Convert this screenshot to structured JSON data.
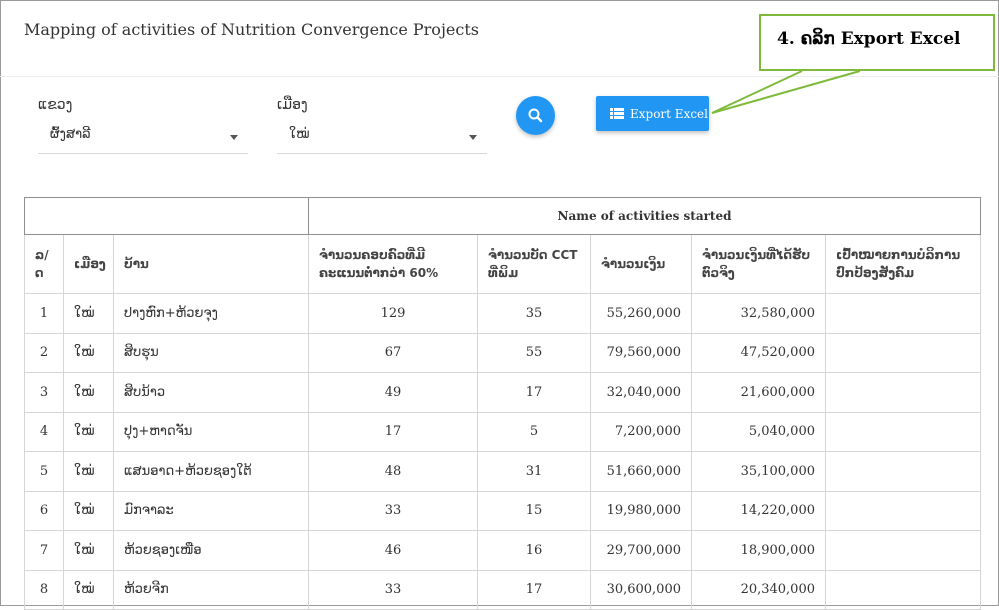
{
  "page": {
    "title": "Mapping of activities of Nutrition Convergence Projects"
  },
  "filters": {
    "province": {
      "label": "ແຂວງ",
      "value": "ຜົ້ງສາລີ"
    },
    "district": {
      "label": "ເມືອງ",
      "value": "ໃໝ່"
    }
  },
  "buttons": {
    "search_icon": "magnifier-icon",
    "export_label": "Export Excel",
    "export_icon": "table-list-icon"
  },
  "callout": {
    "text": "4. ຄລິກ Export Excel",
    "color": "#7fba3a"
  },
  "colors": {
    "accent": "#2196f3"
  },
  "table": {
    "group_header": "Name of activities started",
    "columns": [
      "ລ/ດ",
      "ເມືອງ",
      "ບ້ານ",
      "ຈຳນວນຄອບຄົວທີ່ມີຄະແນນຕ່ຳກວ່າ 60%",
      "ຈຳນວນບັດ CCT ທີ່ພິມ",
      "ຈຳນວນເງິນ",
      "ຈຳນວນເງິນທີ່ໄດ້ຮັບຕົວຈິງ",
      "ເປົ້າໝາຍການບໍລິການປົກປ້ອງສັງຄົມ"
    ],
    "rows": [
      {
        "no": "1",
        "district": "ໃໝ່",
        "village": "ປາງຫົກ+ຫ້ວຍຈຸງ",
        "families": "129",
        "cards": "35",
        "amount": "55,260,000",
        "received": "32,580,000",
        "target": ""
      },
      {
        "no": "2",
        "district": "ໃໝ່",
        "village": "ສິບຮຸນ",
        "families": "67",
        "cards": "55",
        "amount": "79,560,000",
        "received": "47,520,000",
        "target": ""
      },
      {
        "no": "3",
        "district": "ໃໝ່",
        "village": "ສິບນ້າວ",
        "families": "49",
        "cards": "17",
        "amount": "32,040,000",
        "received": "21,600,000",
        "target": ""
      },
      {
        "no": "4",
        "district": "ໃໝ່",
        "village": "ປຸງ+ຫາດຈັນ",
        "families": "17",
        "cards": "5",
        "amount": "7,200,000",
        "received": "5,040,000",
        "target": ""
      },
      {
        "no": "5",
        "district": "ໃໝ່",
        "village": "ແສນອາດ+ຫ້ວຍຊອງໃຕ້",
        "families": "48",
        "cards": "31",
        "amount": "51,660,000",
        "received": "35,100,000",
        "target": ""
      },
      {
        "no": "6",
        "district": "ໃໝ່",
        "village": "ມົກຈາລະ",
        "families": "33",
        "cards": "15",
        "amount": "19,980,000",
        "received": "14,220,000",
        "target": ""
      },
      {
        "no": "7",
        "district": "ໃໝ່",
        "village": "ຫ້ວຍຊອງເໜືອ",
        "families": "46",
        "cards": "16",
        "amount": "29,700,000",
        "received": "18,900,000",
        "target": ""
      },
      {
        "no": "8",
        "district": "ໃໝ່",
        "village": "ຫ້ວຍຈີກ",
        "families": "33",
        "cards": "17",
        "amount": "30,600,000",
        "received": "20,340,000",
        "target": ""
      }
    ]
  }
}
